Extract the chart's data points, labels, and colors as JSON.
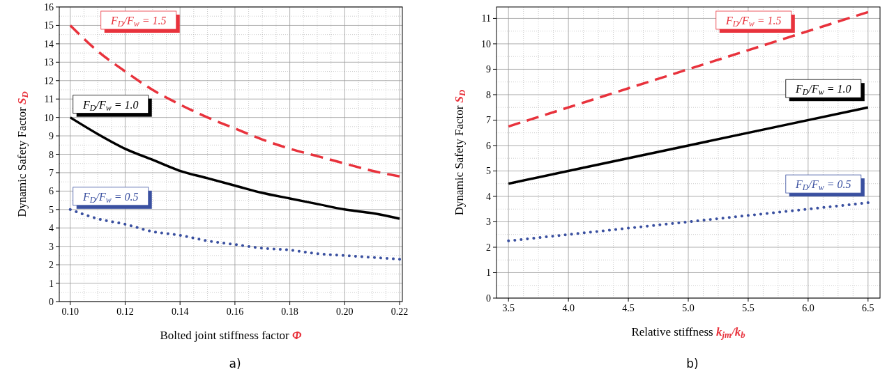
{
  "chart_data": [
    {
      "type": "line",
      "xlabel": "Bolted joint stiffness factor Φ",
      "ylabel": "Dynamic Safety Factor S$_{D}$",
      "annotations": [
        "a)"
      ],
      "x": [
        0.1,
        0.11,
        0.12,
        0.13,
        0.14,
        0.15,
        0.16,
        0.17,
        0.18,
        0.19,
        0.2,
        0.21,
        0.22
      ],
      "series": [
        {
          "name": "F$_{D}$/F$_{w}$ = 1.5",
          "color": "#e8323c",
          "line_style": "dashed",
          "values": [
            15,
            13.6,
            12.5,
            11.5,
            10.7,
            10.0,
            9.4,
            8.8,
            8.3,
            7.9,
            7.5,
            7.1,
            6.8
          ]
        },
        {
          "name": "F$_{D}$/F$_{w}$ = 1.0",
          "color": "#000000",
          "line_style": "solid",
          "values": [
            10,
            9.1,
            8.3,
            7.7,
            7.1,
            6.7,
            6.3,
            5.9,
            5.6,
            5.3,
            5.0,
            4.8,
            4.5
          ]
        },
        {
          "name": "F$_{D}$/F$_{w}$ = 0.5",
          "color": "#3a50a0",
          "line_style": "dotted",
          "values": [
            5,
            4.5,
            4.2,
            3.8,
            3.6,
            3.3,
            3.1,
            2.9,
            2.8,
            2.6,
            2.5,
            2.4,
            2.3
          ]
        }
      ],
      "xlim": [
        0.096,
        0.221
      ],
      "xticks": [
        {
          "value": 0.1,
          "label": "0.10"
        },
        {
          "value": 0.12,
          "label": "0.12"
        },
        {
          "value": 0.14,
          "label": "0.14"
        },
        {
          "value": 0.16,
          "label": "0.16"
        },
        {
          "value": 0.18,
          "label": "0.18"
        },
        {
          "value": 0.2,
          "label": "0.20"
        },
        {
          "value": 0.22,
          "label": "0.22"
        }
      ],
      "ylim": [
        0,
        16
      ],
      "yticks": [
        0,
        1,
        2,
        3,
        4,
        5,
        6,
        7,
        8,
        9,
        10,
        11,
        12,
        13,
        14,
        15,
        16
      ],
      "grid": true
    },
    {
      "type": "line",
      "xlabel": "Relative stiffness k$_{jm}$/k$_{b}$",
      "ylabel": "Dynamic Safety Factor S$_{D}$",
      "annotations": [
        "b)"
      ],
      "x": [
        3.5,
        5.0,
        6.5
      ],
      "series": [
        {
          "name": "F$_{D}$/F$_{w}$ = 1.5",
          "color": "#e8323c",
          "line_style": "dashed",
          "values": [
            6.75,
            9.0,
            11.25
          ]
        },
        {
          "name": "F$_{D}$/F$_{w}$ = 1.0",
          "color": "#000000",
          "line_style": "solid",
          "values": [
            4.5,
            6.0,
            7.5
          ]
        },
        {
          "name": "F$_{D}$/F$_{w}$ = 0.5",
          "color": "#3a50a0",
          "line_style": "dotted",
          "values": [
            2.25,
            3.0,
            3.75
          ]
        }
      ],
      "xlim": [
        3.4,
        6.6
      ],
      "xticks": [
        {
          "value": 3.5,
          "label": "3.5"
        },
        {
          "value": 4.0,
          "label": "4.0"
        },
        {
          "value": 4.5,
          "label": "4.5"
        },
        {
          "value": 5.0,
          "label": "5.0"
        },
        {
          "value": 5.5,
          "label": "5.5"
        },
        {
          "value": 6.0,
          "label": "6.0"
        },
        {
          "value": 6.5,
          "label": "6.5"
        }
      ],
      "ylim": [
        0,
        11.45
      ],
      "yticks": [
        0,
        1,
        2,
        3,
        4,
        5,
        6,
        7,
        8,
        9,
        10,
        11
      ],
      "grid": true
    }
  ]
}
